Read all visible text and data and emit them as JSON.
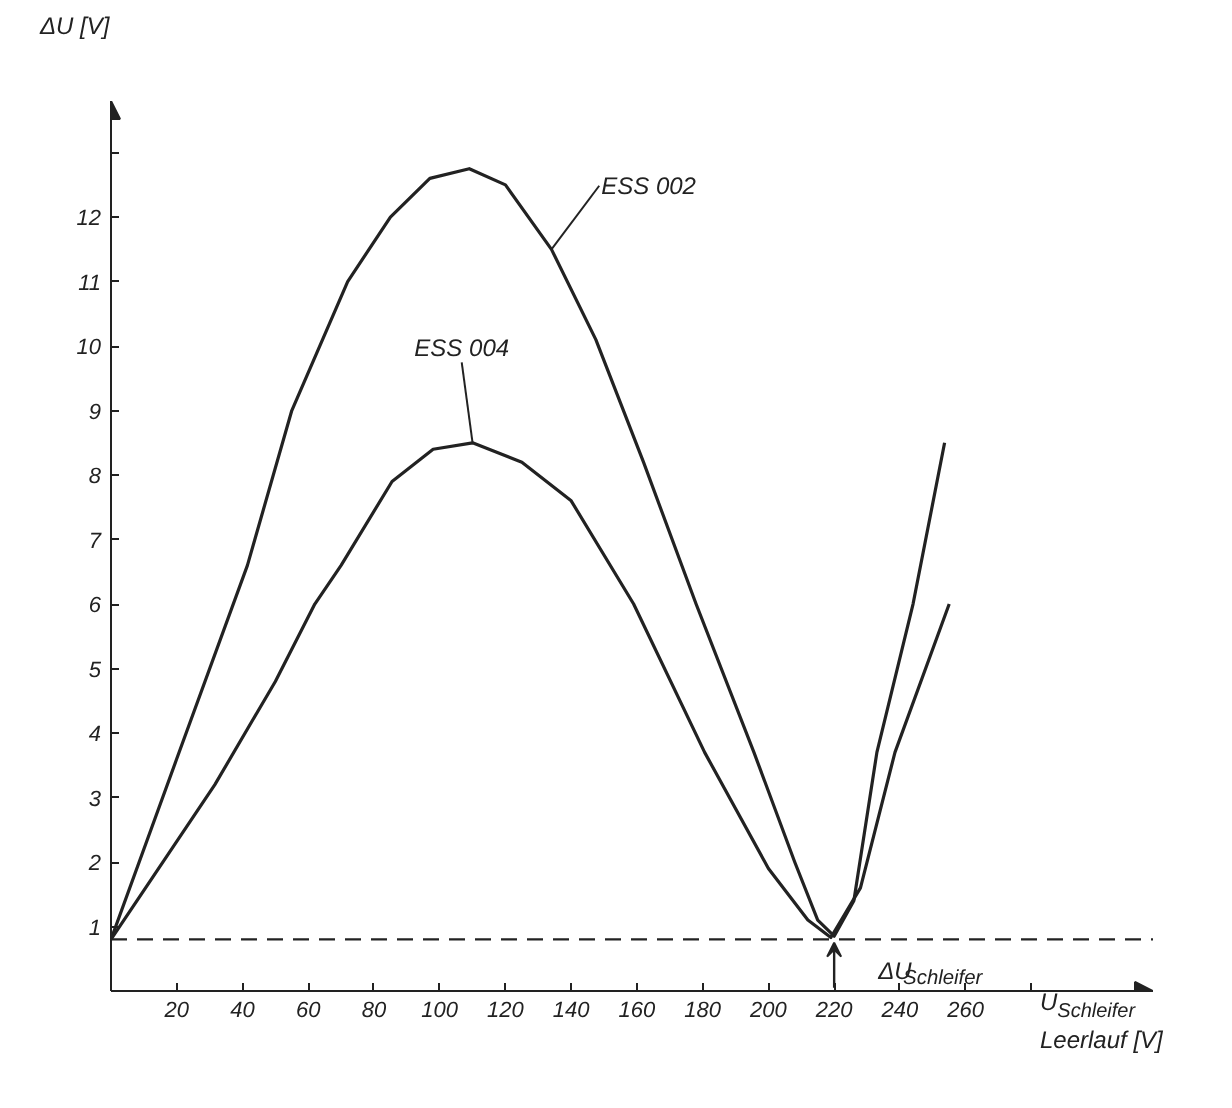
{
  "chart_data": {
    "type": "line",
    "xlabel": "U$_{Schleifer}$ Leerlauf [V]",
    "ylabel": "ΔU [V]",
    "xlim": [
      0,
      317
    ],
    "ylim": [
      0,
      13.8
    ],
    "xticks": [
      {
        "value": 0,
        "label": null
      },
      20,
      40,
      60,
      80,
      100,
      120,
      140,
      160,
      180,
      200,
      220,
      240,
      260,
      {
        "value": 280,
        "label": null
      }
    ],
    "yticks": [
      1,
      2,
      3,
      4,
      5,
      6,
      7,
      8,
      9,
      10,
      11,
      12,
      {
        "value": 13,
        "label": null
      }
    ],
    "grid": false,
    "legend": false,
    "marker": "none",
    "line_style": "solid",
    "ref_lines": [
      {
        "axis": "y",
        "value": 0.8,
        "line_style": "dashed",
        "color": "#222222"
      }
    ],
    "annotations": [
      {
        "text": "ΔU$_{Schleifer}$",
        "x": 220,
        "y": 0.8
      }
    ],
    "series": [
      {
        "name": "ESS 002",
        "color": "#222222",
        "x": [
          0,
          20,
          41.5,
          55,
          72,
          85,
          97,
          109,
          120,
          134,
          147.5,
          162,
          178,
          195.6,
          208,
          215,
          220,
          226,
          233,
          244,
          253.6
        ],
        "values": [
          0.8,
          3.6,
          6.6,
          9,
          11,
          12,
          12.6,
          12.75,
          12.5,
          11.5,
          10.1,
          8.2,
          6.0,
          3.7,
          2.0,
          1.1,
          0.85,
          1.4,
          3.7,
          6.0,
          8.5
        ]
      },
      {
        "name": "ESS 004",
        "color": "#222222",
        "x": [
          0,
          31.6,
          50,
          62,
          70,
          85.5,
          98,
          110,
          125,
          140,
          159,
          180.6,
          200,
          212,
          219,
          228,
          238.5,
          255
        ],
        "values": [
          0.8,
          3.2,
          4.8,
          6.0,
          6.6,
          7.9,
          8.4,
          8.5,
          8.2,
          7.6,
          6.0,
          3.7,
          1.9,
          1.1,
          0.83,
          1.6,
          3.7,
          6.0
        ]
      }
    ]
  }
}
